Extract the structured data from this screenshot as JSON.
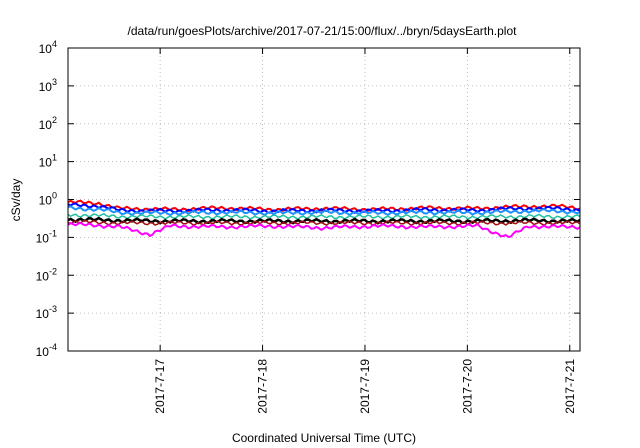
{
  "chart_data": {
    "type": "line",
    "title": "/data/run/goesPlots/archive/2017-07-21/15:00/flux/../bryn/5daysEarth.plot",
    "xlabel": "Coordinated Universal Time (UTC)",
    "ylabel": "cSv/day",
    "yscale": "log",
    "ylim": [
      0.0001,
      10000
    ],
    "xlim": [
      0,
      5
    ],
    "grid": true,
    "legend": "none",
    "y_ticks": [
      {
        "exp": "-4",
        "value": 0.0001
      },
      {
        "exp": "-3",
        "value": 0.001
      },
      {
        "exp": "-2",
        "value": 0.01
      },
      {
        "exp": "-1",
        "value": 0.1
      },
      {
        "exp": "0",
        "value": 1
      },
      {
        "exp": "1",
        "value": 10
      },
      {
        "exp": "2",
        "value": 100
      },
      {
        "exp": "3",
        "value": 1000
      },
      {
        "exp": "4",
        "value": 10000
      }
    ],
    "y_tick_base": "10",
    "x_ticks": [
      {
        "label": "2017-7-17",
        "value": 0.9
      },
      {
        "label": "2017-7-18",
        "value": 1.9
      },
      {
        "label": "2017-7-19",
        "value": 2.9
      },
      {
        "label": "2017-7-20",
        "value": 3.9
      },
      {
        "label": "2017-7-21",
        "value": 4.9
      }
    ],
    "series": [
      {
        "color": "#ff0000",
        "width": 2,
        "points": [
          [
            0,
            0.85
          ],
          [
            0.3,
            0.8
          ],
          [
            0.5,
            0.58
          ],
          [
            1.0,
            0.55
          ],
          [
            1.5,
            0.6
          ],
          [
            2.0,
            0.55
          ],
          [
            2.5,
            0.58
          ],
          [
            3.0,
            0.55
          ],
          [
            3.5,
            0.6
          ],
          [
            4.0,
            0.58
          ],
          [
            4.2,
            0.62
          ],
          [
            4.5,
            0.66
          ],
          [
            4.8,
            0.66
          ],
          [
            4.95,
            0.62
          ],
          [
            5.0,
            0.58
          ]
        ]
      },
      {
        "color": "#0000ff",
        "width": 2,
        "points": [
          [
            0,
            0.72
          ],
          [
            0.3,
            0.68
          ],
          [
            0.5,
            0.52
          ],
          [
            1.0,
            0.5
          ],
          [
            1.5,
            0.53
          ],
          [
            2.0,
            0.5
          ],
          [
            2.5,
            0.52
          ],
          [
            3.0,
            0.5
          ],
          [
            3.5,
            0.54
          ],
          [
            4.0,
            0.52
          ],
          [
            4.2,
            0.56
          ],
          [
            4.5,
            0.58
          ],
          [
            4.8,
            0.58
          ],
          [
            4.95,
            0.55
          ],
          [
            5.0,
            0.52
          ]
        ]
      },
      {
        "color": "#1e90ff",
        "width": 2,
        "points": [
          [
            0,
            0.6
          ],
          [
            0.3,
            0.55
          ],
          [
            0.5,
            0.45
          ],
          [
            1.0,
            0.44
          ],
          [
            1.5,
            0.46
          ],
          [
            2.0,
            0.44
          ],
          [
            2.5,
            0.46
          ],
          [
            3.0,
            0.44
          ],
          [
            3.5,
            0.46
          ],
          [
            4.0,
            0.45
          ],
          [
            4.2,
            0.47
          ],
          [
            4.5,
            0.5
          ],
          [
            4.8,
            0.5
          ],
          [
            4.95,
            0.47
          ],
          [
            5.0,
            0.45
          ]
        ]
      },
      {
        "color": "#20c0a0",
        "width": 1.5,
        "points": [
          [
            0,
            0.4
          ],
          [
            0.5,
            0.36
          ],
          [
            1.0,
            0.35
          ],
          [
            2.0,
            0.35
          ],
          [
            3.0,
            0.35
          ],
          [
            4.0,
            0.35
          ],
          [
            4.5,
            0.36
          ],
          [
            5.0,
            0.35
          ]
        ]
      },
      {
        "color": "#000000",
        "width": 2.5,
        "points": [
          [
            0,
            0.3
          ],
          [
            0.5,
            0.28
          ],
          [
            1.0,
            0.27
          ],
          [
            2.0,
            0.27
          ],
          [
            3.0,
            0.27
          ],
          [
            4.0,
            0.27
          ],
          [
            4.5,
            0.28
          ],
          [
            5.0,
            0.27
          ]
        ]
      },
      {
        "color": "#a01010",
        "width": 1.5,
        "points": [
          [
            0,
            0.26
          ],
          [
            0.5,
            0.24
          ],
          [
            1.0,
            0.24
          ],
          [
            2.0,
            0.24
          ],
          [
            3.0,
            0.24
          ],
          [
            4.0,
            0.24
          ],
          [
            5.0,
            0.24
          ]
        ]
      },
      {
        "color": "#ff00ff",
        "width": 2,
        "points": [
          [
            0,
            0.22
          ],
          [
            0.3,
            0.21
          ],
          [
            0.5,
            0.19
          ],
          [
            0.8,
            0.12
          ],
          [
            1.0,
            0.2
          ],
          [
            1.5,
            0.19
          ],
          [
            2.0,
            0.2
          ],
          [
            2.5,
            0.18
          ],
          [
            3.0,
            0.2
          ],
          [
            3.5,
            0.19
          ],
          [
            4.0,
            0.2
          ],
          [
            4.3,
            0.1
          ],
          [
            4.5,
            0.2
          ],
          [
            4.8,
            0.19
          ],
          [
            5.0,
            0.19
          ]
        ]
      }
    ]
  }
}
